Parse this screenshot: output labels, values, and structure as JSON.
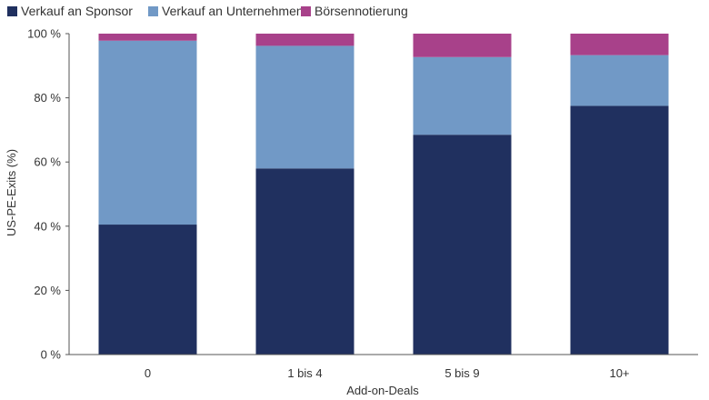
{
  "chart_data": {
    "type": "bar",
    "stacked": true,
    "categories": [
      "0",
      "1 bis 4",
      "5 bis 9",
      "10+"
    ],
    "series": [
      {
        "name": "Verkauf an Sponsor",
        "color": "#20305f",
        "values": [
          40.5,
          58,
          68.5,
          77.5
        ]
      },
      {
        "name": "Verkauf an Unternehmen",
        "color": "#7199c6",
        "values": [
          57.3,
          38.2,
          24.2,
          15.8
        ]
      },
      {
        "name": "Börsennotierung",
        "color": "#a8418a",
        "values": [
          2.2,
          3.8,
          7.3,
          6.7
        ]
      }
    ],
    "xlabel": "Add-on-Deals",
    "ylabel": "US-PE-Exits (%)",
    "ylim": [
      0,
      100
    ],
    "yticks": [
      0,
      20,
      40,
      60,
      80,
      100
    ],
    "ytick_labels": [
      "0 %",
      "20 %",
      "40 %",
      "60 %",
      "80 %",
      "100 %"
    ],
    "grid": false,
    "legend_position": "top-left"
  }
}
